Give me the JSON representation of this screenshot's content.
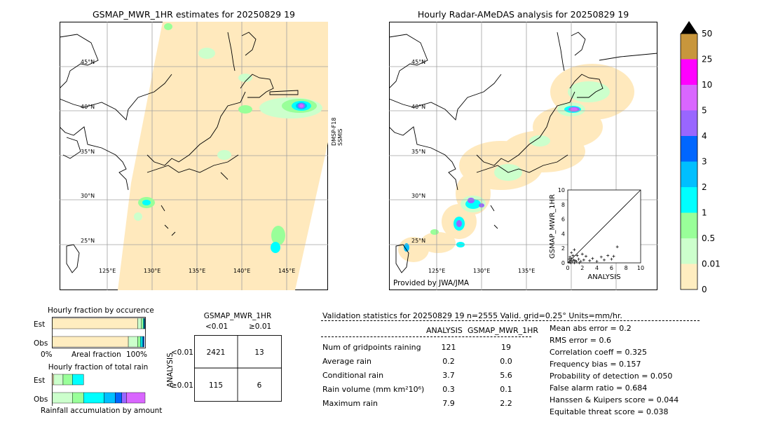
{
  "left_map": {
    "title": "GSMAP_MWR_1HR estimates for 20250829 19",
    "side_label_1": "DMSP-F18",
    "side_label_2": "SSMIS",
    "lat_labels": [
      "45°N",
      "40°N",
      "35°N",
      "30°N",
      "25°N"
    ],
    "lon_labels": [
      "125°E",
      "130°E",
      "135°E",
      "140°E",
      "145°E"
    ]
  },
  "right_map": {
    "title": "Hourly Radar-AMeDAS analysis for 20250829 19",
    "credit": "Provided by JWA/JMA",
    "lat_labels": [
      "45°N",
      "40°N",
      "35°N",
      "30°N",
      "25°N"
    ],
    "lon_labels": [
      "125°E",
      "130°E",
      "135°E"
    ]
  },
  "colorbar": {
    "labels": [
      "50",
      "25",
      "10",
      "5",
      "4",
      "3",
      "2",
      "1",
      "0.5",
      "0.01",
      "0"
    ],
    "colors": [
      "#c8963c",
      "#ff00ff",
      "#d966ff",
      "#9966ff",
      "#0066ff",
      "#00bfff",
      "#00ffff",
      "#99ff99",
      "#ccffcc",
      "#ffedc0"
    ]
  },
  "occurrence": {
    "title": "Hourly fraction by occurence",
    "row_est": "Est",
    "row_obs": "Obs",
    "x_left": "0%",
    "x_mid": "Areal fraction",
    "x_right": "100%"
  },
  "total_rain": {
    "title": "Hourly fraction of total rain",
    "row_est": "Est",
    "row_obs": "Obs",
    "footer": "Rainfall accumulation by amount"
  },
  "contingency": {
    "col_title": "GSMAP_MWR_1HR",
    "col_lt": "<0.01",
    "col_ge": "≥0.01",
    "row_title": "ANALYSIS",
    "row_lt": "<0.01",
    "row_ge": "≥0.01",
    "cells": [
      "2421",
      "13",
      "115",
      "6"
    ]
  },
  "validation": {
    "header": "Validation statistics for 20250829 19  n=2555 Valid. grid=0.25° Units=mm/hr.",
    "col_analysis": "ANALYSIS",
    "col_gsmap": "GSMAP_MWR_1HR",
    "rows": [
      {
        "label": "Num of gridpoints raining",
        "analysis": "121",
        "gsmap": "19"
      },
      {
        "label": "Average rain",
        "analysis": "0.2",
        "gsmap": "0.0"
      },
      {
        "label": "Conditional rain",
        "analysis": "3.7",
        "gsmap": "5.6"
      },
      {
        "label": "Rain volume (mm km²10⁶)",
        "analysis": "0.3",
        "gsmap": "0.1"
      },
      {
        "label": "Maximum rain",
        "analysis": "7.9",
        "gsmap": "2.2"
      }
    ],
    "scores": [
      "Mean abs error =    0.2",
      "RMS error =    0.6",
      "Correlation coeff =  0.325",
      "Frequency bias =  0.157",
      "Probability of detection =  0.050",
      "False alarm ratio =  0.684",
      "Hanssen & Kuipers score =  0.044",
      "Equitable threat score =  0.038"
    ]
  },
  "chart_data": [
    {
      "type": "scatter",
      "xlabel": "ANALYSIS",
      "ylabel": "GSMAP_MWR_1HR",
      "xlim": [
        0,
        10
      ],
      "ylim": [
        0,
        10
      ],
      "x_ticks": [
        "0",
        "2",
        "4",
        "6",
        "8",
        "10"
      ],
      "y_ticks": [
        "0",
        "2",
        "4",
        "6",
        "8",
        "10"
      ],
      "points": [
        [
          0.2,
          0.1
        ],
        [
          0.4,
          0.3
        ],
        [
          0.5,
          0.6
        ],
        [
          0.6,
          0.2
        ],
        [
          0.8,
          0.4
        ],
        [
          1.0,
          0.3
        ],
        [
          1.2,
          0.2
        ],
        [
          0.3,
          0.8
        ],
        [
          0.5,
          1.4
        ],
        [
          0.7,
          1.0
        ],
        [
          1.5,
          0.5
        ],
        [
          1.8,
          0.2
        ],
        [
          2.2,
          0.4
        ],
        [
          2.5,
          0.9
        ],
        [
          3.0,
          0.3
        ],
        [
          3.4,
          0.6
        ],
        [
          4.0,
          0.2
        ],
        [
          4.6,
          0.8
        ],
        [
          5.0,
          0.4
        ],
        [
          5.5,
          1.0
        ],
        [
          6.0,
          0.5
        ],
        [
          6.3,
          0.9
        ],
        [
          6.8,
          2.2
        ],
        [
          0.9,
          1.8
        ],
        [
          1.3,
          1.0
        ],
        [
          2.0,
          1.2
        ],
        [
          0.2,
          0.5
        ],
        [
          0.4,
          0.0
        ],
        [
          0.9,
          0.0
        ],
        [
          1.6,
          0.0
        ]
      ]
    },
    {
      "type": "bar",
      "title": "Hourly fraction by occurence",
      "categories": [
        "Est",
        "Obs"
      ],
      "series": [
        {
          "color": "#ffedc0",
          "values": [
            0.92,
            0.82
          ]
        },
        {
          "color": "#ccffcc",
          "values": [
            0.04,
            0.1
          ]
        },
        {
          "color": "#99ff99",
          "values": [
            0.02,
            0.03
          ]
        },
        {
          "color": "#00ffff",
          "values": [
            0.01,
            0.02
          ]
        },
        {
          "color": "#00bfff",
          "values": [
            0.005,
            0.01
          ]
        },
        {
          "color": "#0066ff",
          "values": [
            0.005,
            0.01
          ]
        }
      ]
    },
    {
      "type": "bar",
      "title": "Hourly fraction of total rain",
      "categories": [
        "Est",
        "Obs"
      ],
      "series": [
        {
          "color": "#ffedc0",
          "values": [
            0.02,
            0.0
          ]
        },
        {
          "color": "#ccffcc",
          "values": [
            0.1,
            0.22
          ]
        },
        {
          "color": "#99ff99",
          "values": [
            0.1,
            0.12
          ]
        },
        {
          "color": "#00ffff",
          "values": [
            0.12,
            0.22
          ]
        },
        {
          "color": "#00bfff",
          "values": [
            0.0,
            0.12
          ]
        },
        {
          "color": "#0066ff",
          "values": [
            0.0,
            0.07
          ]
        },
        {
          "color": "#9966ff",
          "values": [
            0.0,
            0.05
          ]
        },
        {
          "color": "#d966ff",
          "values": [
            0.0,
            0.2
          ]
        }
      ]
    }
  ]
}
